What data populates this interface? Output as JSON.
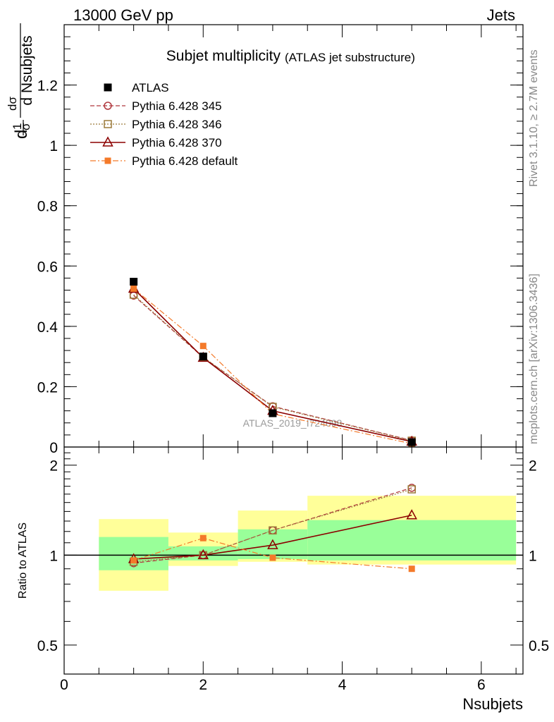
{
  "header": {
    "left": "13000 GeV pp",
    "right": "Jets"
  },
  "side_labels": {
    "rivet": "Rivet 3.1.10, ≥ 2.7M events",
    "mcplots": "mcplots.cern.ch [arXiv:1306.3436]"
  },
  "colors": {
    "atlas": "#000000",
    "p345": "#b0383e",
    "p346": "#9c7a3a",
    "p370": "#8b0000",
    "pdefault": "#f47a2a",
    "band_outer": "#ffff99",
    "band_inner": "#99ff99"
  },
  "chart_data": [
    {
      "type": "line",
      "title": "Subjet multiplicity",
      "subtitle": "(ATLAS jet substructure)",
      "watermark": "ATLAS_2019_I724098",
      "ylabel_parts": [
        "d",
        "1",
        "σ",
        "dσ",
        "d Nsubjets"
      ],
      "xlim": [
        0,
        6.6
      ],
      "ylim": [
        0,
        1.4
      ],
      "yticks": [
        0,
        0.2,
        0.4,
        0.6,
        0.8,
        1,
        1.2
      ],
      "ytick_labels": [
        "0",
        "0.2",
        "0.4",
        "0.6",
        "0.8",
        "1",
        "1.2"
      ],
      "x": [
        1,
        2,
        3,
        5
      ],
      "series": [
        {
          "key": "atlas",
          "name": "ATLAS",
          "values": [
            0.548,
            0.3,
            0.112,
            0.016
          ]
        },
        {
          "key": "p345",
          "name": "Pythia 6.428 345",
          "values": [
            0.502,
            0.297,
            0.135,
            0.022
          ]
        },
        {
          "key": "p346",
          "name": "Pythia 6.428 346",
          "values": [
            0.505,
            0.298,
            0.133,
            0.021
          ]
        },
        {
          "key": "p370",
          "name": "Pythia 6.428 370",
          "values": [
            0.525,
            0.296,
            0.12,
            0.018
          ]
        },
        {
          "key": "pdefault",
          "name": "Pythia 6.428 default",
          "values": [
            0.525,
            0.335,
            0.11,
            0.011
          ]
        }
      ]
    },
    {
      "type": "line",
      "ylabel": "Ratio to ATLAS",
      "xlabel": "Nsubjets",
      "xlim": [
        0,
        6.6
      ],
      "ylim": [
        0.4,
        2.3
      ],
      "log_y": true,
      "xticks": [
        0,
        2,
        4,
        6
      ],
      "xtick_labels": [
        "0",
        "2",
        "4",
        "6"
      ],
      "yticks": [
        0.5,
        1,
        2
      ],
      "ytick_labels": [
        "0.5",
        "1",
        "2"
      ],
      "x": [
        1,
        2,
        3,
        5
      ],
      "bands": [
        {
          "x": [
            0.5,
            1.5
          ],
          "outer": [
            0.76,
            1.32
          ],
          "inner": [
            0.89,
            1.15
          ]
        },
        {
          "x": [
            1.5,
            2.5
          ],
          "outer": [
            0.92,
            1.19
          ],
          "inner": [
            0.96,
            1.07
          ]
        },
        {
          "x": [
            2.5,
            3.5
          ],
          "outer": [
            0.95,
            1.41
          ],
          "inner": [
            0.97,
            1.22
          ]
        },
        {
          "x": [
            3.5,
            6.5
          ],
          "outer": [
            0.93,
            1.58
          ],
          "inner": [
            0.96,
            1.31
          ]
        }
      ],
      "series": [
        {
          "key": "p345",
          "name": "Pythia 6.428 345",
          "values": [
            0.94,
            1.0,
            1.21,
            1.68
          ]
        },
        {
          "key": "p346",
          "name": "Pythia 6.428 346",
          "values": [
            0.95,
            1.0,
            1.21,
            1.66
          ]
        },
        {
          "key": "p370",
          "name": "Pythia 6.428 370",
          "values": [
            0.97,
            1.0,
            1.08,
            1.36
          ]
        },
        {
          "key": "pdefault",
          "name": "Pythia 6.428 default",
          "values": [
            0.96,
            1.14,
            0.98,
            0.9
          ]
        }
      ]
    }
  ]
}
